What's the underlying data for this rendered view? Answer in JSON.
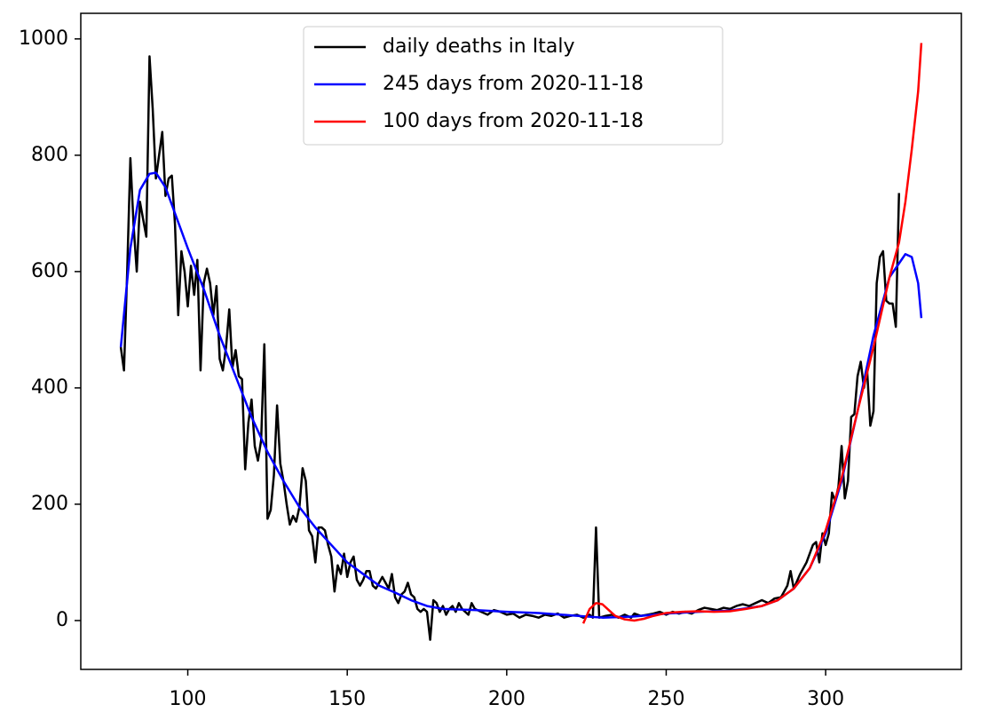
{
  "chart_data": {
    "type": "line",
    "xlim": [
      66.45,
      342.55
    ],
    "ylim": [
      -84,
      1044
    ],
    "xticks": [
      100,
      150,
      200,
      250,
      300
    ],
    "yticks": [
      0,
      200,
      400,
      600,
      800,
      1000
    ],
    "grid": false,
    "legend": "upper center",
    "series": [
      {
        "name": "daily deaths in Italy",
        "color": "#000000",
        "x": [
          79,
          80,
          81,
          82,
          83,
          84,
          85,
          86,
          87,
          88,
          89,
          90,
          91,
          92,
          93,
          94,
          95,
          96,
          97,
          98,
          99,
          100,
          101,
          102,
          103,
          104,
          105,
          106,
          107,
          108,
          109,
          110,
          111,
          112,
          113,
          114,
          115,
          116,
          117,
          118,
          119,
          120,
          121,
          122,
          123,
          124,
          125,
          126,
          127,
          128,
          129,
          130,
          131,
          132,
          133,
          134,
          135,
          136,
          137,
          138,
          139,
          140,
          141,
          142,
          143,
          144,
          145,
          146,
          147,
          148,
          149,
          150,
          151,
          152,
          153,
          154,
          155,
          156,
          157,
          158,
          159,
          160,
          161,
          162,
          163,
          164,
          165,
          166,
          167,
          168,
          169,
          170,
          171,
          172,
          173,
          174,
          175,
          176,
          177,
          178,
          179,
          180,
          181,
          182,
          183,
          184,
          185,
          186,
          187,
          188,
          189,
          190,
          192,
          194,
          196,
          198,
          200,
          202,
          204,
          206,
          208,
          210,
          212,
          214,
          216,
          218,
          220,
          222,
          224,
          226,
          227,
          228,
          229,
          231,
          233,
          235,
          237,
          239,
          240,
          242,
          244,
          246,
          248,
          250,
          252,
          254,
          256,
          258,
          260,
          262,
          264,
          266,
          268,
          270,
          272,
          274,
          276,
          278,
          280,
          282,
          284,
          286,
          288,
          289,
          290,
          292,
          294,
          296,
          297,
          298,
          299,
          300,
          301,
          302,
          303,
          304,
          305,
          306,
          307,
          308,
          309,
          310,
          311,
          312,
          313,
          314,
          315,
          316,
          317,
          318,
          319,
          320,
          321,
          322,
          323
        ],
        "values": [
          470,
          430,
          600,
          795,
          680,
          600,
          720,
          690,
          660,
          970,
          880,
          760,
          800,
          840,
          730,
          760,
          765,
          680,
          525,
          635,
          600,
          540,
          610,
          560,
          620,
          430,
          580,
          605,
          580,
          525,
          575,
          450,
          430,
          470,
          535,
          435,
          465,
          420,
          415,
          260,
          340,
          380,
          300,
          275,
          310,
          475,
          175,
          190,
          250,
          370,
          270,
          240,
          200,
          165,
          180,
          170,
          195,
          262,
          240,
          155,
          145,
          100,
          160,
          160,
          155,
          130,
          110,
          50,
          95,
          80,
          115,
          75,
          100,
          110,
          70,
          60,
          70,
          85,
          85,
          60,
          55,
          65,
          75,
          65,
          55,
          80,
          40,
          30,
          45,
          50,
          65,
          45,
          40,
          20,
          15,
          20,
          15,
          -33,
          35,
          30,
          15,
          25,
          10,
          20,
          25,
          15,
          30,
          20,
          15,
          10,
          30,
          20,
          15,
          10,
          18,
          15,
          10,
          12,
          5,
          10,
          8,
          5,
          10,
          8,
          12,
          5,
          8,
          10,
          5,
          10,
          5,
          160,
          5,
          8,
          10,
          5,
          10,
          5,
          12,
          8,
          10,
          12,
          15,
          10,
          15,
          12,
          15,
          12,
          18,
          22,
          20,
          18,
          22,
          20,
          25,
          28,
          25,
          30,
          35,
          30,
          38,
          40,
          60,
          85,
          55,
          80,
          100,
          130,
          135,
          100,
          150,
          130,
          150,
          220,
          205,
          230,
          300,
          210,
          240,
          350,
          355,
          420,
          445,
          400,
          430,
          335,
          360,
          580,
          625,
          635,
          550,
          545,
          545,
          505,
          735
        ]
      },
      {
        "name": "245 days from 2020-11-18",
        "color": "#0000ff",
        "x": [
          79,
          82,
          85,
          88,
          90,
          93,
          96,
          100,
          105,
          110,
          115,
          120,
          125,
          130,
          135,
          140,
          145,
          150,
          155,
          160,
          165,
          170,
          175,
          180,
          190,
          200,
          210,
          220,
          230,
          240,
          250,
          260,
          270,
          280,
          285,
          290,
          295,
          300,
          305,
          310,
          315,
          320,
          325,
          327,
          329,
          330
        ],
        "values": [
          470,
          640,
          740,
          768,
          770,
          745,
          700,
          640,
          570,
          490,
          420,
          350,
          290,
          240,
          195,
          160,
          130,
          100,
          80,
          60,
          48,
          35,
          25,
          20,
          18,
          15,
          13,
          9,
          5,
          7,
          12,
          15,
          17,
          25,
          35,
          55,
          90,
          150,
          240,
          360,
          490,
          590,
          630,
          625,
          580,
          520
        ]
      },
      {
        "name": "100 days from 2020-11-18",
        "color": "#ff0000",
        "x": [
          224,
          226,
          228,
          230,
          232,
          234,
          237,
          240,
          243,
          246,
          250,
          255,
          260,
          265,
          270,
          275,
          280,
          285,
          290,
          295,
          300,
          305,
          310,
          315,
          320,
          323,
          325,
          327,
          329,
          330
        ],
        "values": [
          -5,
          20,
          30,
          28,
          18,
          8,
          2,
          0,
          3,
          8,
          13,
          15,
          16,
          15,
          16,
          20,
          25,
          35,
          55,
          90,
          155,
          245,
          360,
          470,
          590,
          650,
          720,
          810,
          910,
          993
        ]
      }
    ]
  }
}
